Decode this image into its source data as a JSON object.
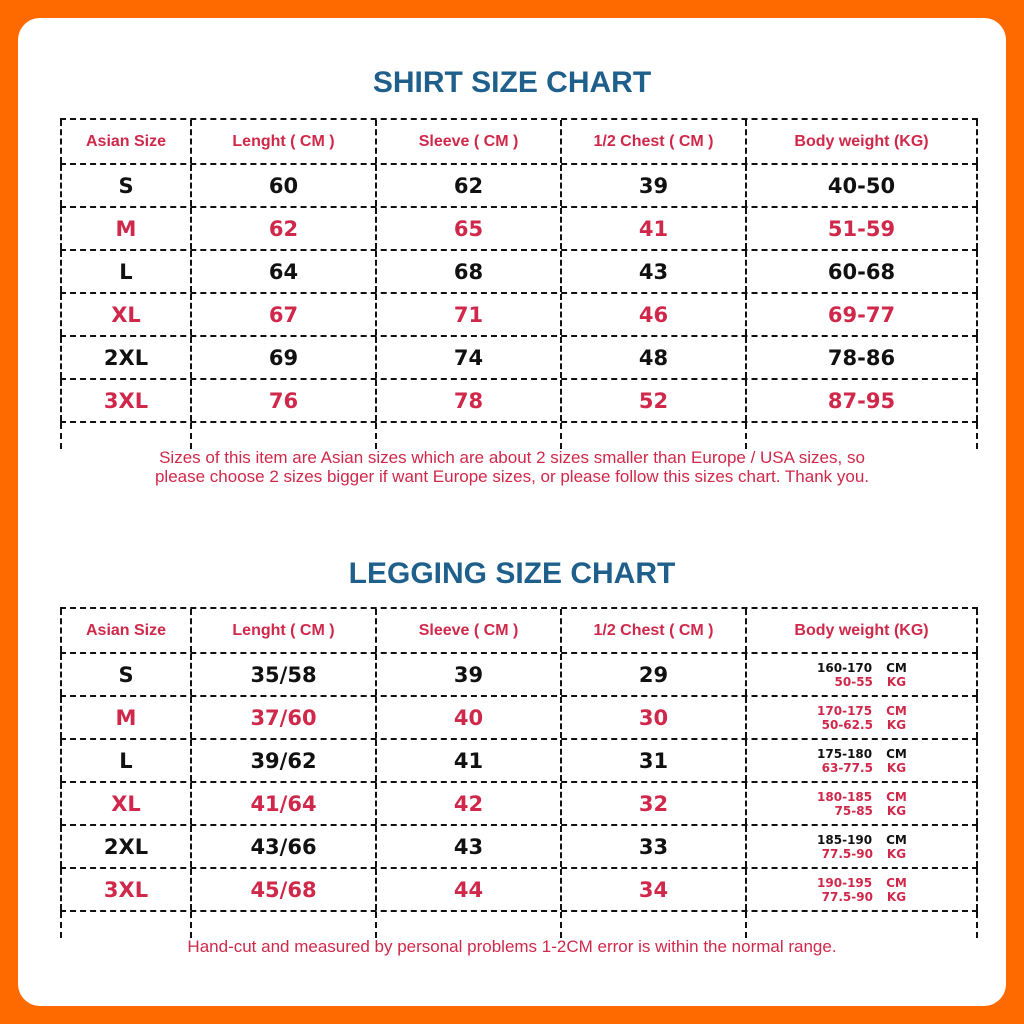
{
  "shirt": {
    "title": "SHIRT SIZE CHART",
    "headers": [
      "Asian Size",
      "Lenght ( CM )",
      "Sleeve ( CM )",
      "1/2 Chest ( CM )",
      "Body weight (KG)"
    ],
    "rows": [
      [
        "S",
        "60",
        "62",
        "39",
        "40-50"
      ],
      [
        "M",
        "62",
        "65",
        "41",
        "51-59"
      ],
      [
        "L",
        "64",
        "68",
        "43",
        "60-68"
      ],
      [
        "XL",
        "67",
        "71",
        "46",
        "69-77"
      ],
      [
        "2XL",
        "69",
        "74",
        "48",
        "78-86"
      ],
      [
        "3XL",
        "76",
        "78",
        "52",
        "87-95"
      ]
    ],
    "note": "Sizes of this item are Asian sizes which are about 2 sizes smaller than Europe / USA sizes, so please choose 2 sizes bigger if want Europe sizes, or please follow this sizes chart. Thank you."
  },
  "legging": {
    "title": "LEGGING SIZE CHART",
    "headers": [
      "Asian Size",
      "Lenght ( CM )",
      "Sleeve ( CM )",
      "1/2 Chest ( CM )",
      "Body weight (KG)"
    ],
    "rows": [
      [
        "S",
        "35/58",
        "39",
        "29",
        {
          "height": "160-170",
          "height_unit": "CM",
          "weight": "50-55",
          "weight_unit": "KG"
        }
      ],
      [
        "M",
        "37/60",
        "40",
        "30",
        {
          "height": "170-175",
          "height_unit": "CM",
          "weight": "50-62.5",
          "weight_unit": "KG"
        }
      ],
      [
        "L",
        "39/62",
        "41",
        "31",
        {
          "height": "175-180",
          "height_unit": "CM",
          "weight": "63-77.5",
          "weight_unit": "KG"
        }
      ],
      [
        "XL",
        "41/64",
        "42",
        "32",
        {
          "height": "180-185",
          "height_unit": "CM",
          "weight": "75-85",
          "weight_unit": "KG"
        }
      ],
      [
        "2XL",
        "43/66",
        "43",
        "33",
        {
          "height": "185-190",
          "height_unit": "CM",
          "weight": "77.5-90",
          "weight_unit": "KG"
        }
      ],
      [
        "3XL",
        "45/68",
        "44",
        "34",
        {
          "height": "190-195",
          "height_unit": "CM",
          "weight": "77.5-90",
          "weight_unit": "KG"
        }
      ]
    ],
    "note": "Hand-cut and measured by personal problems 1-2CM error is within the normal range."
  },
  "colors": {
    "frame": "#ff6a00",
    "title": "#1f5f8b",
    "accent": "#d0284a",
    "text": "#111111"
  }
}
